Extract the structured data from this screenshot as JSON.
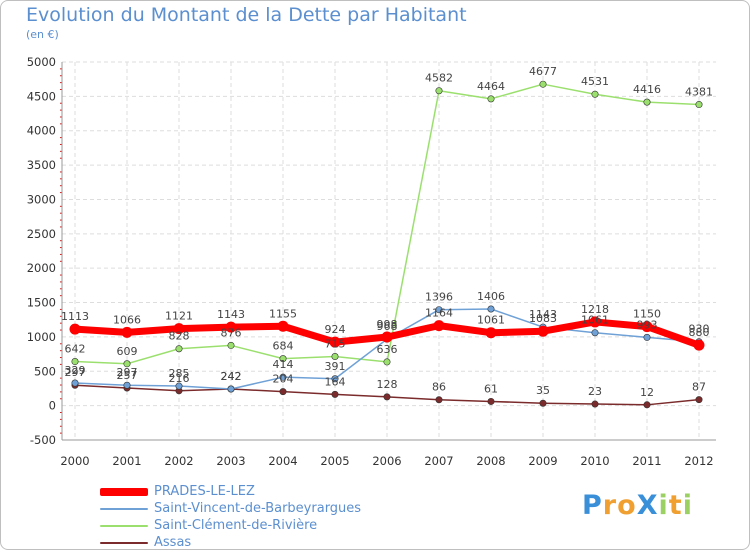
{
  "chart_data": {
    "type": "line",
    "title": "Evolution du Montant de la Dette par Habitant",
    "subtitle": "(en €)",
    "x": [
      "2000",
      "2001",
      "2002",
      "2003",
      "2004",
      "2005",
      "2006",
      "2007",
      "2008",
      "2009",
      "2010",
      "2011",
      "2012"
    ],
    "ylim": [
      -500,
      5000
    ],
    "yticks": [
      -500,
      0,
      500,
      1000,
      1500,
      2000,
      2500,
      3000,
      3500,
      4000,
      4500,
      5000
    ],
    "grid": true,
    "legend_position": "bottom-left",
    "series": [
      {
        "name": "PRADES-LE-LEZ",
        "color": "#ff0000",
        "values": [
          1113,
          1066,
          1121,
          1143,
          1155,
          924,
          998,
          1164,
          1061,
          1083,
          1218,
          1150,
          880
        ]
      },
      {
        "name": "Saint-Vincent-de-Barbeyrargues",
        "color": "#6fa1d6",
        "values": [
          329,
          297,
          285,
          242,
          414,
          391,
          968,
          1396,
          1406,
          1143,
          1061,
          993,
          930
        ]
      },
      {
        "name": "Saint-Clément-de-Rivière",
        "color": "#9be06e",
        "values": [
          642,
          609,
          828,
          876,
          684,
          715,
          636,
          4582,
          4464,
          4677,
          4531,
          4416,
          4381
        ]
      },
      {
        "name": "Assas",
        "color": "#7b2b2b",
        "values": [
          297,
          257,
          216,
          242,
          204,
          164,
          128,
          86,
          61,
          35,
          23,
          12,
          87
        ]
      }
    ]
  },
  "logo": {
    "text": "ProXiti",
    "letters": [
      "P",
      "r",
      "o",
      "X",
      "i",
      "t",
      "i"
    ],
    "colors": [
      "#3a8fd9",
      "#f0a030",
      "#f0a030",
      "#3a8fd9",
      "#9bd062",
      "#f0a030",
      "#9bd062"
    ]
  }
}
